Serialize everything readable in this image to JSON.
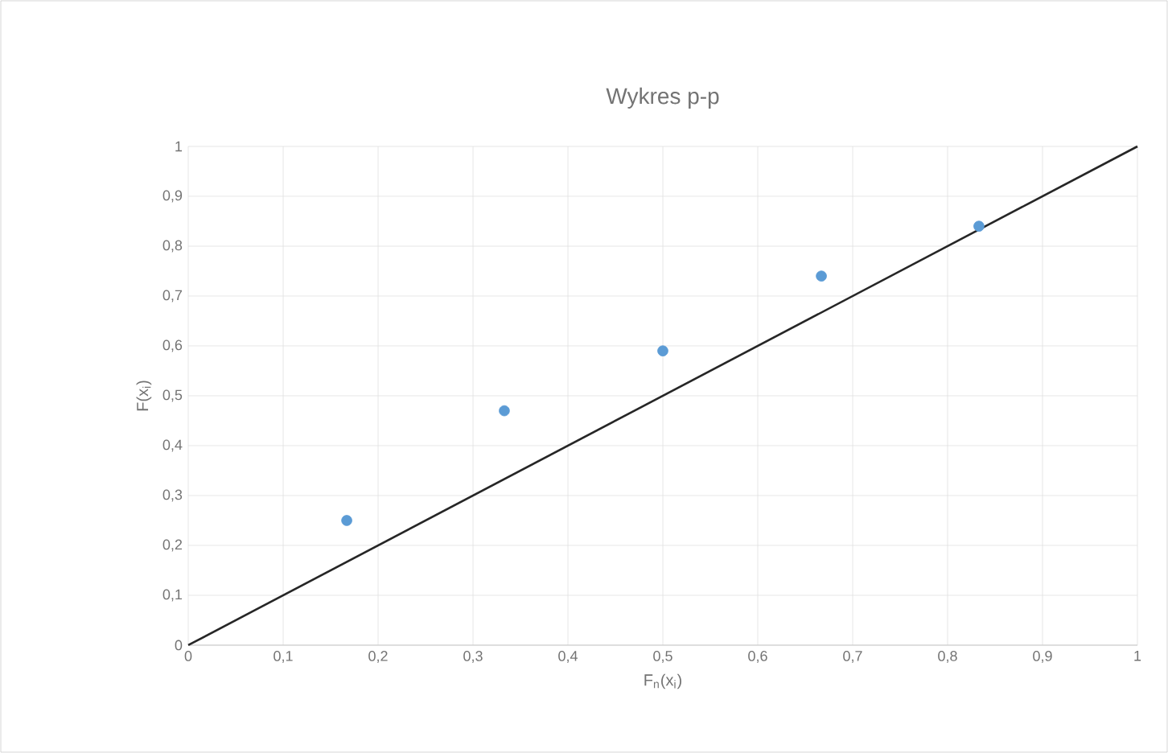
{
  "chart_data": {
    "type": "scatter",
    "title": "Wykres p-p",
    "xlabel": "F$_{n}$(x$_{i}$)",
    "ylabel": "F(x$_{i}$)",
    "series": [
      {
        "type": "scatter",
        "color": "#5b9bd5",
        "x": [
          0.167,
          0.333,
          0.5,
          0.667,
          0.833
        ],
        "values": [
          0.25,
          0.47,
          0.59,
          0.74,
          0.84
        ]
      },
      {
        "type": "line",
        "marker": "none",
        "color": "#262626",
        "x": [
          0,
          1
        ],
        "values": [
          0,
          1
        ]
      }
    ],
    "xlim": [
      0,
      1
    ],
    "ylim": [
      0,
      1
    ],
    "xticks": [
      0,
      {
        "value": 0.1,
        "label": "0,1"
      },
      {
        "value": 0.2,
        "label": "0,2"
      },
      {
        "value": 0.3,
        "label": "0,3"
      },
      {
        "value": 0.4,
        "label": "0,4"
      },
      {
        "value": 0.5,
        "label": "0,5"
      },
      {
        "value": 0.6,
        "label": "0,6"
      },
      {
        "value": 0.7,
        "label": "0,7"
      },
      {
        "value": 0.8,
        "label": "0,8"
      },
      {
        "value": 0.9,
        "label": "0,9"
      },
      1
    ],
    "yticks": [
      0,
      {
        "value": 0.1,
        "label": "0,1"
      },
      {
        "value": 0.2,
        "label": "0,2"
      },
      {
        "value": 0.3,
        "label": "0,3"
      },
      {
        "value": 0.4,
        "label": "0,4"
      },
      {
        "value": 0.5,
        "label": "0,5"
      },
      {
        "value": 0.6,
        "label": "0,6"
      },
      {
        "value": 0.7,
        "label": "0,7"
      },
      {
        "value": 0.8,
        "label": "0,8"
      },
      {
        "value": 0.9,
        "label": "0,9"
      },
      1
    ],
    "grid": true,
    "marker": "circle"
  }
}
